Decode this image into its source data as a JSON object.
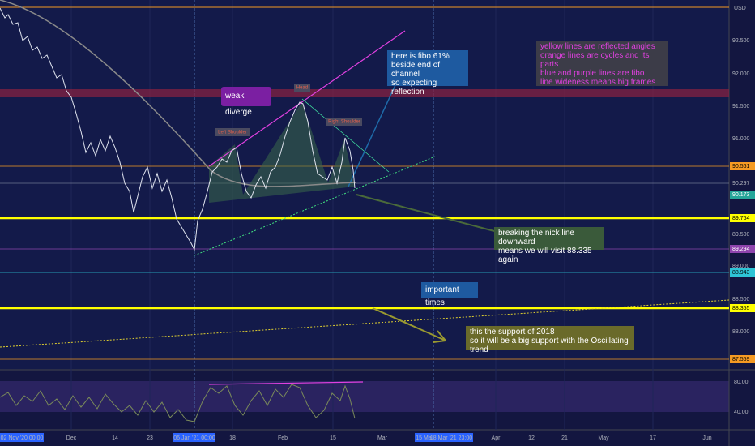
{
  "price_axis": {
    "currency": "USD",
    "labels": [
      "92.500",
      "92.000",
      "91.500",
      "91.000",
      "90.561",
      "90.297",
      "90.173",
      "89.764",
      "89.500",
      "89.294",
      "89.000",
      "88.943",
      "88.500",
      "88.355",
      "88.000",
      "87.559"
    ]
  },
  "rsi_axis": {
    "labels": [
      "80.00",
      "40.00"
    ]
  },
  "time_axis": {
    "labels": [
      "02 Nov '20 00:00",
      "Dec",
      "14",
      "23",
      "06 Jan '21 00:00",
      "18",
      "Feb",
      "15",
      "Mar",
      "15 Ma",
      "18 Mar '21 23:00",
      "Apr",
      "12",
      "21",
      "May",
      "17",
      "Jun"
    ]
  },
  "pattern_labels": {
    "left_shoulder": "Left Shoulder",
    "head": "Head",
    "right_shoulder": "Right Shoulder"
  },
  "annotations": {
    "weak_diverge": "weak diverge",
    "fibo": [
      "here is fibo 61%",
      "beside end of channel",
      "so expecting reflection"
    ],
    "legend_note": [
      "yellow lines are reflected angles",
      "orange lines are cycles and its parts",
      "blue and purple lines are fibo",
      "line wideness means big frames"
    ],
    "neckline": [
      "breaking the nick line downward",
      "means we will visit 88.335 again"
    ],
    "important_times": "important times",
    "support": [
      "this the support of 2018",
      "so it will be a big support with the Oscillating trend"
    ]
  }
}
